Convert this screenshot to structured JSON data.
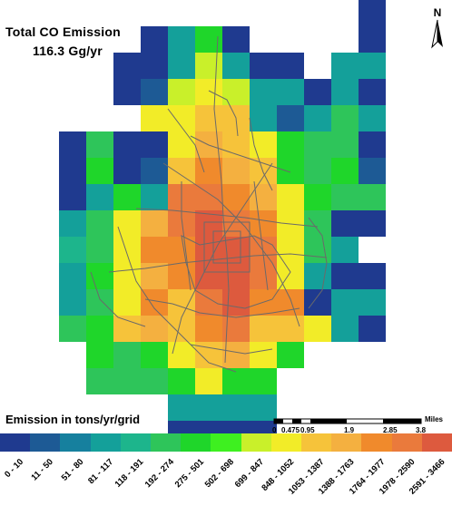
{
  "title": {
    "line1": "Total CO Emission",
    "line2": "116.3 Gg/yr"
  },
  "north_label": "N",
  "legend": {
    "title": "Emission in tons/yr/grid",
    "classes": [
      {
        "label": "0 - 10",
        "color": "#1f3a8f"
      },
      {
        "label": "11 - 50",
        "color": "#1d5a95"
      },
      {
        "label": "51 - 80",
        "color": "#16809e"
      },
      {
        "label": "81 - 117",
        "color": "#14a09a"
      },
      {
        "label": "118 - 191",
        "color": "#1db58c"
      },
      {
        "label": "192 - 274",
        "color": "#2ec55a"
      },
      {
        "label": "275 - 501",
        "color": "#1fd62a"
      },
      {
        "label": "502 - 698",
        "color": "#3ef020"
      },
      {
        "label": "699 - 847",
        "color": "#c9f02a"
      },
      {
        "label": "848 - 1052",
        "color": "#f2ec28"
      },
      {
        "label": "1053 - 1387",
        "color": "#f6c33a"
      },
      {
        "label": "1388 - 1763",
        "color": "#f4b040"
      },
      {
        "label": "1764 - 1977",
        "color": "#f08a2c"
      },
      {
        "label": "1978 - 2590",
        "color": "#ea7a3c"
      },
      {
        "label": "2591 - 3466",
        "color": "#dd5a3e"
      }
    ]
  },
  "scale": {
    "unit": "Miles",
    "ticks": [
      "0",
      "0.475",
      "0.95",
      "1.9",
      "2.85",
      "3.8"
    ]
  },
  "grid": {
    "cols": 14,
    "rows": 14,
    "cells": [
      [
        -1,
        -1,
        -1,
        -1,
        -1,
        -1,
        -1,
        -1,
        -1,
        -1,
        -1,
        -1,
        -1,
        0
      ],
      [
        -1,
        -1,
        -1,
        -1,
        -1,
        0,
        3,
        6,
        0,
        -1,
        -1,
        -1,
        -1,
        0
      ],
      [
        -1,
        -1,
        -1,
        -1,
        0,
        0,
        3,
        8,
        3,
        0,
        0,
        -1,
        3,
        3
      ],
      [
        -1,
        -1,
        -1,
        -1,
        0,
        1,
        8,
        9,
        8,
        3,
        3,
        0,
        3,
        0
      ],
      [
        -1,
        -1,
        -1,
        -1,
        -1,
        9,
        9,
        10,
        10,
        3,
        1,
        3,
        5,
        3
      ],
      [
        -1,
        -1,
        0,
        5,
        0,
        0,
        9,
        11,
        10,
        9,
        6,
        5,
        5,
        0
      ],
      [
        -1,
        -1,
        0,
        6,
        0,
        1,
        10,
        12,
        11,
        10,
        6,
        5,
        6,
        1
      ],
      [
        -1,
        -1,
        0,
        3,
        6,
        3,
        13,
        13,
        12,
        11,
        9,
        6,
        5,
        5
      ],
      [
        -1,
        -1,
        3,
        5,
        9,
        11,
        13,
        14,
        13,
        12,
        9,
        5,
        0,
        0
      ],
      [
        -1,
        -1,
        4,
        5,
        9,
        12,
        12,
        14,
        14,
        13,
        9,
        5,
        3,
        -1
      ],
      [
        -1,
        -1,
        3,
        6,
        9,
        11,
        12,
        14,
        14,
        13,
        9,
        3,
        0,
        0
      ],
      [
        -1,
        -1,
        3,
        5,
        9,
        12,
        10,
        13,
        14,
        12,
        12,
        0,
        3,
        3
      ],
      [
        -1,
        -1,
        5,
        6,
        10,
        11,
        10,
        12,
        13,
        10,
        10,
        9,
        3,
        0
      ],
      [
        -1,
        -1,
        -1,
        6,
        5,
        6,
        9,
        10,
        11,
        9,
        6,
        -1,
        -1,
        -1
      ]
    ],
    "extra_rows": [
      [
        -1,
        -1,
        -1,
        5,
        5,
        5,
        6,
        9,
        6,
        6,
        -1,
        -1,
        -1,
        -1
      ],
      [
        -1,
        -1,
        -1,
        -1,
        -1,
        -1,
        3,
        3,
        3,
        3,
        -1,
        -1,
        -1,
        -1
      ],
      [
        -1,
        -1,
        -1,
        -1,
        -1,
        -1,
        0,
        0,
        0,
        0,
        -1,
        -1,
        -1,
        -1
      ]
    ]
  }
}
